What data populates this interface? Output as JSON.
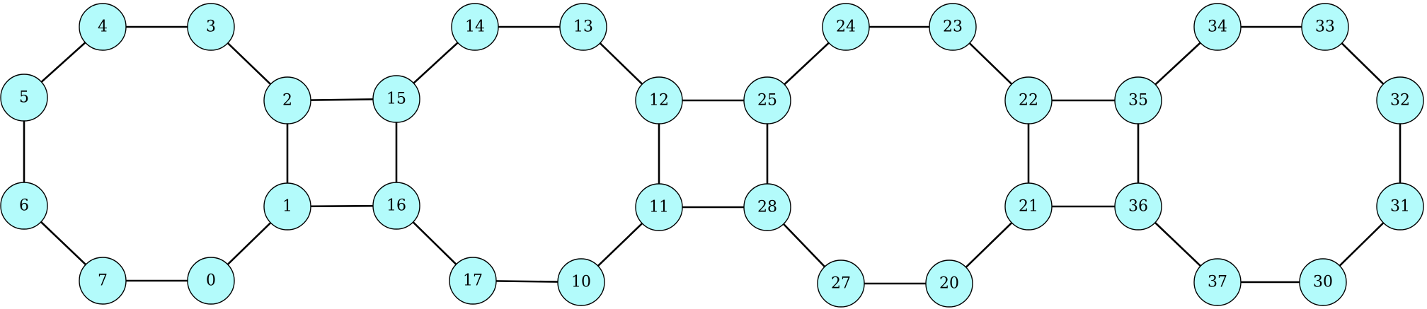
{
  "colors": {
    "node_fill": "#b3fbfb",
    "node_stroke": "#000000",
    "edge": "#000000",
    "background": "#ffffff"
  },
  "nodes": [
    {
      "id": "4",
      "label": "4"
    },
    {
      "id": "3",
      "label": "3"
    },
    {
      "id": "5",
      "label": "5"
    },
    {
      "id": "2",
      "label": "2"
    },
    {
      "id": "6",
      "label": "6"
    },
    {
      "id": "1",
      "label": "1"
    },
    {
      "id": "7",
      "label": "7"
    },
    {
      "id": "0",
      "label": "0"
    },
    {
      "id": "15",
      "label": "15"
    },
    {
      "id": "14",
      "label": "14"
    },
    {
      "id": "13",
      "label": "13"
    },
    {
      "id": "12",
      "label": "12"
    },
    {
      "id": "11",
      "label": "11"
    },
    {
      "id": "16",
      "label": "16"
    },
    {
      "id": "17",
      "label": "17"
    },
    {
      "id": "10",
      "label": "10"
    },
    {
      "id": "25",
      "label": "25"
    },
    {
      "id": "24",
      "label": "24"
    },
    {
      "id": "23",
      "label": "23"
    },
    {
      "id": "22",
      "label": "22"
    },
    {
      "id": "21",
      "label": "21"
    },
    {
      "id": "28",
      "label": "28"
    },
    {
      "id": "27",
      "label": "27"
    },
    {
      "id": "20",
      "label": "20"
    },
    {
      "id": "35",
      "label": "35"
    },
    {
      "id": "34",
      "label": "34"
    },
    {
      "id": "33",
      "label": "33"
    },
    {
      "id": "32",
      "label": "32"
    },
    {
      "id": "31",
      "label": "31"
    },
    {
      "id": "36",
      "label": "36"
    },
    {
      "id": "37",
      "label": "37"
    },
    {
      "id": "30",
      "label": "30"
    }
  ],
  "edges": [
    [
      "4",
      "3"
    ],
    [
      "3",
      "2"
    ],
    [
      "2",
      "1"
    ],
    [
      "1",
      "0"
    ],
    [
      "0",
      "7"
    ],
    [
      "7",
      "6"
    ],
    [
      "6",
      "5"
    ],
    [
      "5",
      "4"
    ],
    [
      "2",
      "15"
    ],
    [
      "1",
      "16"
    ],
    [
      "15",
      "16"
    ],
    [
      "15",
      "14"
    ],
    [
      "14",
      "13"
    ],
    [
      "13",
      "12"
    ],
    [
      "12",
      "11"
    ],
    [
      "11",
      "10"
    ],
    [
      "10",
      "17"
    ],
    [
      "17",
      "16"
    ],
    [
      "12",
      "25"
    ],
    [
      "11",
      "28"
    ],
    [
      "25",
      "28"
    ],
    [
      "25",
      "24"
    ],
    [
      "24",
      "23"
    ],
    [
      "23",
      "22"
    ],
    [
      "22",
      "21"
    ],
    [
      "21",
      "20"
    ],
    [
      "20",
      "27"
    ],
    [
      "27",
      "28"
    ],
    [
      "22",
      "35"
    ],
    [
      "21",
      "36"
    ],
    [
      "35",
      "36"
    ],
    [
      "35",
      "34"
    ],
    [
      "34",
      "33"
    ],
    [
      "33",
      "32"
    ],
    [
      "32",
      "31"
    ],
    [
      "31",
      "30"
    ],
    [
      "30",
      "37"
    ],
    [
      "37",
      "36"
    ]
  ]
}
